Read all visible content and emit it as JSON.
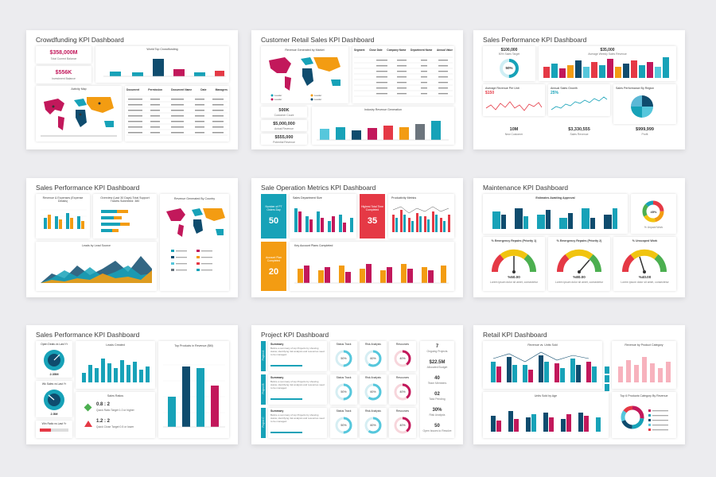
{
  "colors": {
    "teal": "#17a2b8",
    "cyan": "#56c7dc",
    "navy": "#0f4c6e",
    "magenta": "#c2185b",
    "red": "#e53945",
    "orange": "#f39c12",
    "gray": "#6c757d",
    "green": "#4caf50",
    "yellow": "#f1c40f"
  },
  "slides": [
    {
      "title": "Crowdfunding KPI Dashboard",
      "stat1_value": "$358,000M",
      "stat1_label": "Total Current Balance",
      "stat2_value": "$556K",
      "stat2_label": "Investment Balance",
      "chart1_title": "World Top Crowdfunding",
      "map_title": "Activity Map",
      "table_headers": [
        "Document",
        "Permission",
        "Document Name",
        "Date",
        "Managers"
      ],
      "table_cell": "• Document"
    },
    {
      "title": "Customer Retail Sales KPI Dashboard",
      "map_title": "Revenue Generated by Market",
      "table_headers": [
        "Segment",
        "Close Date",
        "Company Name",
        "Department Name",
        "Annual Value"
      ],
      "stats": [
        {
          "value": "500K",
          "label": "Customer Count"
        },
        {
          "value": "$5,000,000",
          "label": "Actual Revenue"
        },
        {
          "value": "$555,000",
          "label": "Potential Revenue"
        }
      ],
      "chart_title": "Industry Revenue Generation"
    },
    {
      "title": "Sales Performance KPI Dashboard",
      "gauge_value": "$100,000",
      "gauge_sub": "50% Sales Target",
      "gauge_pct": "50%",
      "bars_value": "$35,000",
      "bars_sub": "Average Weekly Sales Revenue",
      "avg_title": "Average Revenue Per Unit",
      "avg_value": "$150",
      "growth_title": "Annual Sales Growth",
      "growth_value": "25%",
      "region_title": "Sales Performance By Region",
      "stats": [
        {
          "value": "10M",
          "label": "New Customer"
        },
        {
          "value": "$3,330,555",
          "label": "Sales Revenue"
        },
        {
          "value": "$999,999",
          "label": "Profit"
        }
      ]
    },
    {
      "title": "Sales Performance KPI Dashboard",
      "rev_title": "Revenue & Expenses (Expense Details)",
      "overview_title": "Overview (Last 30 Days) Total Support Tickets Submitted: 380",
      "country_title": "Revenue Generated By Country",
      "leads_title": "Leads by Lead Source"
    },
    {
      "title": "Sale Operation Metrics KPI Dashboard",
      "box1_label": "Number of PT Orders Day",
      "box1_value": "50",
      "box2_label": "Highest Total Time Completed",
      "box2_value": "35",
      "box3_label": "Account Plan Completed",
      "box3_value": "20",
      "chart1_title": "Sales Department Size",
      "chart2_title": "Productivity Metrics",
      "chart3_title": "Key Account Plans Completed"
    },
    {
      "title": "Maintenance KPI Dashboard",
      "chart_title": "Estimates Awaiting Approval",
      "donut_value": "45%",
      "donut_label": "% Unpaid Work",
      "gauges": [
        {
          "title": "% Emergency Repairs (Priority 1)",
          "value": "%50.00"
        },
        {
          "title": "% Emergency Repairs (Priority 2)",
          "value": "%80.00"
        },
        {
          "title": "% Unscoped Work",
          "value": "%40.00"
        }
      ],
      "gauge_note": "Lorem ipsum dolor sit amet, consectetur"
    },
    {
      "title": "Sales Performance KPI Dashboard",
      "g1_title": "Open Deals vs Last Yr",
      "g1_value": "2.35M",
      "g2_title": "Wk Sales vs Last Yr",
      "g2_value": "2.5M",
      "g3_title": "Win Ratio vs Last Yr",
      "leads_title": "Leads Created",
      "ratios_title": "Sales Ratios",
      "r1_value": "0.8 : 2",
      "r1_label": "Quick Ratio Target 1.0 or higher",
      "r2_value": "1.2 : 2",
      "r2_label": "Quick Close Target 0.5 or lower",
      "top_title": "Top Products in Revenue ($M)"
    },
    {
      "title": "Project KPI Dashboard",
      "projects": [
        "Project A",
        "Project B",
        "Project C"
      ],
      "summary_title": "Summary",
      "summary_text": "Before a summary of top Projects by showing status, identifying risk analysis and resources need to be managed.",
      "track_titles": [
        "Status Track",
        "Risk Analysis",
        "Resources"
      ],
      "donut_values": [
        [
          "50%",
          "60%",
          "40%"
        ],
        [
          "50%",
          "60%",
          "40%"
        ],
        [
          "50%",
          "60%",
          "40%"
        ]
      ],
      "stats": [
        {
          "value": "7",
          "label": "Ongoing Projects"
        },
        {
          "value": "$22.5M",
          "label": "Allocated Budget"
        },
        {
          "value": "40",
          "label": "Team Members"
        },
        {
          "value": "02",
          "label": "Task Pending"
        },
        {
          "value": "30%",
          "label": "Risk Analysis"
        },
        {
          "value": "50",
          "label": "Open Issues to Resolve"
        }
      ]
    },
    {
      "title": "Retail KPI Dashboard",
      "chart1_title": "Revenue vs. Units Sold",
      "chart2_title": "Revenue by Product Category",
      "chart3_title": "Units Sold by Age",
      "chart4_title": "Top 6 Products Category By Revenue"
    }
  ]
}
